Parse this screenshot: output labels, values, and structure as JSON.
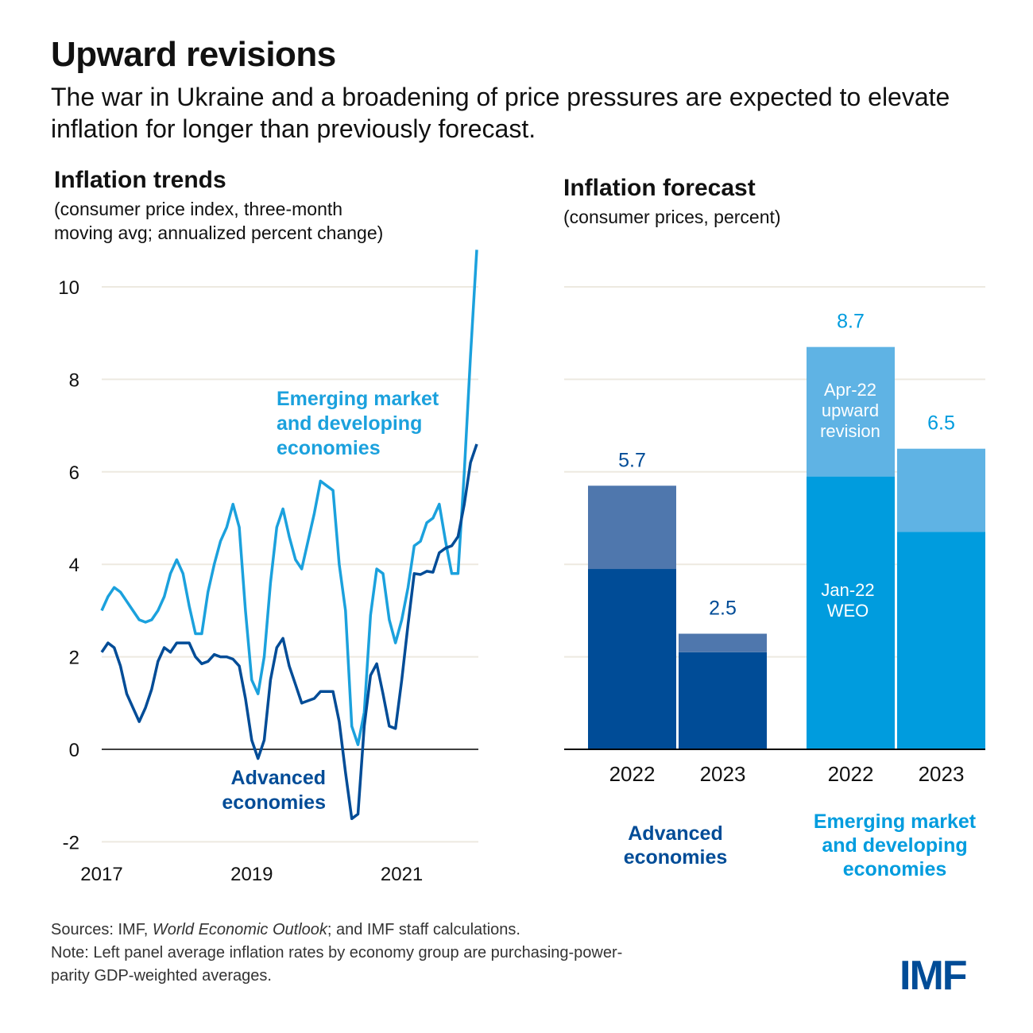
{
  "header": {
    "title": "Upward revisions",
    "subtitle": "The war in Ukraine and a broadening of price pressures are expected to elevate inflation for longer than previously forecast."
  },
  "colors": {
    "advanced": "#004c97",
    "advanced_light": "#4f77ad",
    "emerging": "#009cde",
    "emerging_light": "#5fb3e4",
    "emerging_line": "#1ba1dd",
    "grid": "#ede9e0"
  },
  "chart_data": [
    {
      "type": "line",
      "title": "Inflation trends",
      "subtitle_line1": "(consumer price index, three-month",
      "subtitle_line2": "moving avg; annualized percent change)",
      "xlabel": "",
      "ylabel": "",
      "ylim": [
        -2,
        10
      ],
      "yticks": [
        10,
        8,
        6,
        4,
        2,
        0,
        -2
      ],
      "ytick_labels": [
        "10",
        "8",
        "6",
        "4",
        "2",
        "0",
        "-2"
      ],
      "xtick_labels": [
        "2017",
        "2019",
        "2021"
      ],
      "x_start": "2017-01",
      "x_step": "month",
      "grid": true,
      "series": [
        {
          "name": "Emerging market and developing economies",
          "label_line1": "Emerging market",
          "label_line2": "and developing",
          "label_line3": "economies",
          "values": [
            3.0,
            3.3,
            3.5,
            3.4,
            3.2,
            3.0,
            2.8,
            2.75,
            2.8,
            3.0,
            3.3,
            3.8,
            4.1,
            3.8,
            3.1,
            2.5,
            2.5,
            3.4,
            4.0,
            4.5,
            4.8,
            5.3,
            4.8,
            3.0,
            1.5,
            1.2,
            2.0,
            3.6,
            4.8,
            5.2,
            4.6,
            4.1,
            3.9,
            4.5,
            5.1,
            5.8,
            5.7,
            5.6,
            4.0,
            3.0,
            0.5,
            0.1,
            0.8,
            2.9,
            3.9,
            3.8,
            2.8,
            2.3,
            2.8,
            3.5,
            4.4,
            4.5,
            4.9,
            5.0,
            5.3,
            4.5,
            3.8,
            3.8,
            6.0,
            8.5,
            10.8
          ]
        },
        {
          "name": "Advanced economies",
          "label_line1": "Advanced",
          "label_line2": "economies",
          "values": [
            2.1,
            2.3,
            2.2,
            1.8,
            1.2,
            0.9,
            0.6,
            0.9,
            1.3,
            1.9,
            2.2,
            2.1,
            2.3,
            2.3,
            2.3,
            2.0,
            1.85,
            1.9,
            2.05,
            2.0,
            2.0,
            1.95,
            1.8,
            1.1,
            0.2,
            -0.2,
            0.2,
            1.5,
            2.2,
            2.4,
            1.8,
            1.4,
            1.0,
            1.05,
            1.1,
            1.25,
            1.25,
            1.25,
            0.6,
            -0.5,
            -1.5,
            -1.4,
            0.5,
            1.6,
            1.85,
            1.2,
            0.5,
            0.45,
            1.5,
            2.7,
            3.8,
            3.78,
            3.85,
            3.83,
            4.25,
            4.35,
            4.4,
            4.6,
            5.3,
            6.2,
            6.6
          ]
        }
      ]
    },
    {
      "type": "bar",
      "stacked": true,
      "title": "Inflation forecast",
      "subtitle": "(consumer prices, percent)",
      "ylim": [
        0,
        10
      ],
      "grid": true,
      "categories": [
        "2022",
        "2023",
        "2022",
        "2023"
      ],
      "groups": [
        {
          "name": "Advanced economies",
          "label_line1": "Advanced",
          "label_line2": "economies",
          "categories": [
            0,
            1
          ]
        },
        {
          "name": "Emerging market and developing economies",
          "label_line1": "Emerging market",
          "label_line2": "and developing",
          "label_line3": "economies",
          "categories": [
            2,
            3
          ]
        }
      ],
      "series": [
        {
          "name": "Jan-22 WEO",
          "label_line1": "Jan-22",
          "label_line2": "WEO",
          "values": [
            3.9,
            2.1,
            5.9,
            4.7
          ]
        },
        {
          "name": "Apr-22 upward revision",
          "label_line1": "Apr-22",
          "label_line2": "upward",
          "label_line3": "revision",
          "values": [
            1.8,
            0.4,
            2.8,
            1.8
          ]
        }
      ],
      "totals": [
        5.7,
        2.5,
        8.7,
        6.5
      ],
      "total_labels": [
        "5.7",
        "2.5",
        "8.7",
        "6.5"
      ]
    }
  ],
  "footer": {
    "sources_prefix": "Sources: IMF, ",
    "sources_italic": "World Economic Outlook",
    "sources_suffix": "; and IMF staff calculations.",
    "note_line1": "Note: Left panel average inflation rates by economy group are purchasing-power-",
    "note_line2": "parity GDP-weighted averages."
  },
  "logo": {
    "text": "IMF"
  }
}
